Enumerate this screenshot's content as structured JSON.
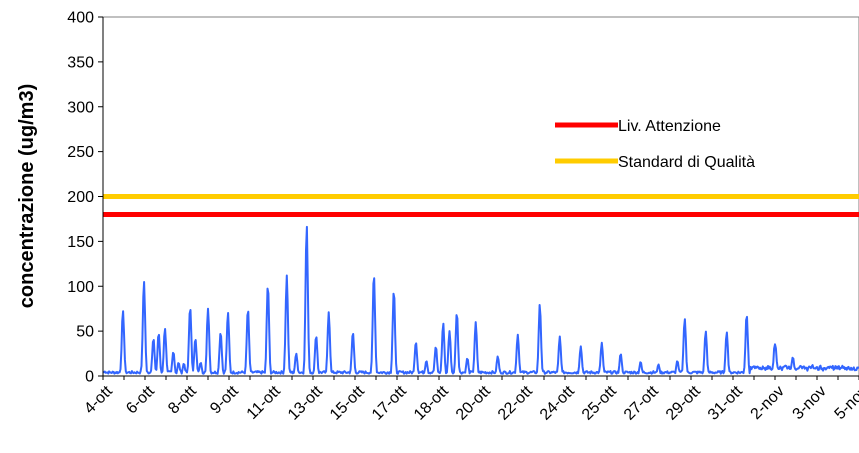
{
  "chart_data": {
    "type": "line",
    "title": "",
    "xlabel": "",
    "ylabel": "concentrazione (ug/m3)",
    "ylim": [
      0,
      400
    ],
    "yticks": [
      0,
      50,
      100,
      150,
      200,
      250,
      300,
      350,
      400
    ],
    "x_tick_labels": [
      "4-ott",
      "6-ott",
      "8-ott",
      "9-ott",
      "11-ott",
      "13-ott",
      "15-ott",
      "17-ott",
      "18-ott",
      "20-ott",
      "22-ott",
      "24-ott",
      "25-ott",
      "27-ott",
      "29-ott",
      "31-ott",
      "2-nov",
      "3-nov",
      "5-nov"
    ],
    "x_range": [
      0,
      36
    ],
    "grid": false,
    "legend_position": "right",
    "thresholds": [
      {
        "name": "Liv. Attenzione",
        "value": 180,
        "color": "#ff0000"
      },
      {
        "name": "Standard di Qualità",
        "value": 200,
        "color": "#ffcc00"
      }
    ],
    "series": [
      {
        "color": "#3366ff",
        "peaks": [
          [
            0.08,
            5
          ],
          [
            0.95,
            73
          ],
          [
            1.95,
            106
          ],
          [
            2.4,
            42
          ],
          [
            2.65,
            48
          ],
          [
            2.95,
            53
          ],
          [
            3.35,
            27
          ],
          [
            3.6,
            15
          ],
          [
            3.85,
            14
          ],
          [
            4.15,
            77
          ],
          [
            4.4,
            42
          ],
          [
            4.65,
            15
          ],
          [
            5.0,
            75
          ],
          [
            5.6,
            49
          ],
          [
            5.95,
            71
          ],
          [
            6.9,
            75
          ],
          [
            7.85,
            102
          ],
          [
            8.75,
            112
          ],
          [
            9.2,
            25
          ],
          [
            9.7,
            168
          ],
          [
            10.15,
            45
          ],
          [
            10.75,
            71
          ],
          [
            11.9,
            49
          ],
          [
            12.9,
            114
          ],
          [
            13.85,
            96
          ],
          [
            14.9,
            38
          ],
          [
            15.4,
            17
          ],
          [
            15.85,
            33
          ],
          [
            16.2,
            59
          ],
          [
            16.5,
            50
          ],
          [
            16.85,
            71
          ],
          [
            17.35,
            20
          ],
          [
            17.75,
            60
          ],
          [
            18.8,
            22
          ],
          [
            19.75,
            46
          ],
          [
            20.8,
            80
          ],
          [
            21.75,
            44
          ],
          [
            22.75,
            33
          ],
          [
            23.75,
            37
          ],
          [
            24.65,
            25
          ],
          [
            25.6,
            16
          ],
          [
            26.45,
            13
          ],
          [
            27.35,
            17
          ],
          [
            27.7,
            64
          ],
          [
            28.7,
            50
          ],
          [
            29.7,
            49
          ],
          [
            30.65,
            69
          ],
          [
            32.0,
            32
          ],
          [
            32.85,
            14
          ]
        ]
      }
    ]
  }
}
